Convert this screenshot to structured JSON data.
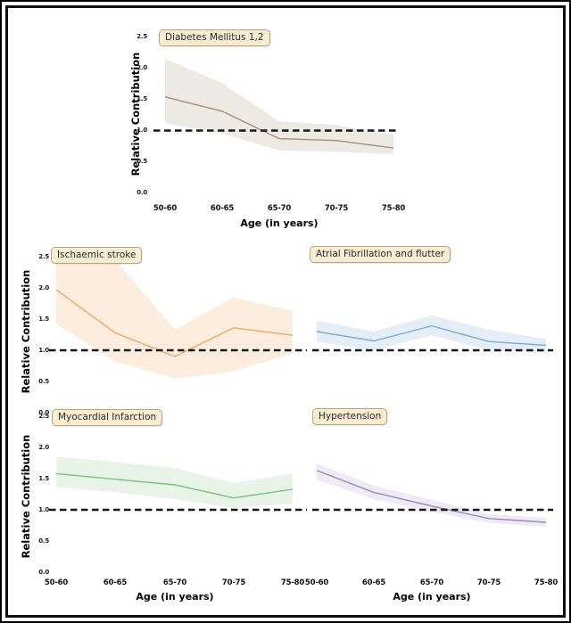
{
  "figure": {
    "ylabel": "Relative Contribution",
    "xlabel": "Age (in years)",
    "categories": [
      "50-60",
      "60-65",
      "65-70",
      "70-75",
      "75-80"
    ],
    "y_tick_labels": [
      "2.5",
      "2.0",
      "1.5",
      "1.0",
      "0.5",
      "0.0"
    ],
    "reference_value": 1.0,
    "reference_line_color": "#151515",
    "frame_color": "#000000",
    "badge_background": "#f8ecd3",
    "badge_border": "#b5a782"
  },
  "chart_data": [
    {
      "type": "line",
      "title": "Diabetes Mellitus 1,2",
      "xlabel": "Age (in years)",
      "ylabel": "Relative Contribution",
      "x": [
        "50-60",
        "60-65",
        "65-70",
        "70-75",
        "75-80"
      ],
      "values": [
        1.54,
        1.31,
        0.87,
        0.84,
        0.72
      ],
      "band_upper": [
        2.15,
        1.76,
        1.15,
        1.09,
        0.93
      ],
      "band_lower": [
        1.12,
        0.95,
        0.68,
        0.66,
        0.62
      ],
      "reference_line": 1.0,
      "ylim": [
        0,
        2.5
      ],
      "line_color": "#a88f7c",
      "band_color": "#edeae4"
    },
    {
      "type": "line",
      "title": "Ischaemic stroke",
      "xlabel": "Age (in years)",
      "ylabel": "Relative Contribution",
      "x": [
        "50-60",
        "60-65",
        "65-70",
        "70-75",
        "75-80"
      ],
      "values": [
        1.97,
        1.28,
        0.9,
        1.36,
        1.24
      ],
      "band_upper": [
        2.48,
        2.45,
        1.33,
        1.85,
        1.63
      ],
      "band_lower": [
        1.42,
        0.82,
        0.55,
        0.66,
        0.95
      ],
      "reference_line": 1.0,
      "ylim": [
        0,
        2.5
      ],
      "line_color": "#f3a566",
      "band_color": "#fcedde"
    },
    {
      "type": "line",
      "title": "Atrial Fibrillation and flutter",
      "xlabel": "Age (in years)",
      "ylabel": "Relative Contribution",
      "x": [
        "50-60",
        "60-65",
        "65-70",
        "70-75",
        "75-80"
      ],
      "values": [
        1.3,
        1.15,
        1.39,
        1.14,
        1.08
      ],
      "band_upper": [
        1.48,
        1.3,
        1.56,
        1.33,
        1.18
      ],
      "band_lower": [
        1.14,
        1.0,
        1.24,
        1.0,
        0.96
      ],
      "reference_line": 1.0,
      "ylim": [
        0,
        2.5
      ],
      "line_color": "#79add2",
      "band_color": "#e5eef6"
    },
    {
      "type": "line",
      "title": "Myocardial Infarction",
      "xlabel": "Age (in years)",
      "ylabel": "Relative Contribution",
      "x": [
        "50-60",
        "60-65",
        "65-70",
        "70-75",
        "75-80"
      ],
      "values": [
        1.58,
        1.49,
        1.4,
        1.19,
        1.33
      ],
      "band_upper": [
        1.85,
        1.77,
        1.67,
        1.43,
        1.58
      ],
      "band_lower": [
        1.37,
        1.28,
        1.17,
        1.03,
        1.1
      ],
      "reference_line": 1.0,
      "ylim": [
        0,
        2.5
      ],
      "line_color": "#79c37c",
      "band_color": "#e8f4e8"
    },
    {
      "type": "line",
      "title": "Hypertension",
      "xlabel": "Age (in years)",
      "ylabel": "Relative Contribution",
      "x": [
        "50-60",
        "60-65",
        "65-70",
        "70-75",
        "75-80"
      ],
      "values": [
        1.63,
        1.28,
        1.06,
        0.86,
        0.8
      ],
      "band_upper": [
        1.74,
        1.39,
        1.16,
        0.93,
        0.87
      ],
      "band_lower": [
        1.48,
        1.17,
        0.97,
        0.79,
        0.73
      ],
      "reference_line": 1.0,
      "ylim": [
        0,
        2.5
      ],
      "line_color": "#9c88bb",
      "band_color": "#edebf5"
    }
  ]
}
